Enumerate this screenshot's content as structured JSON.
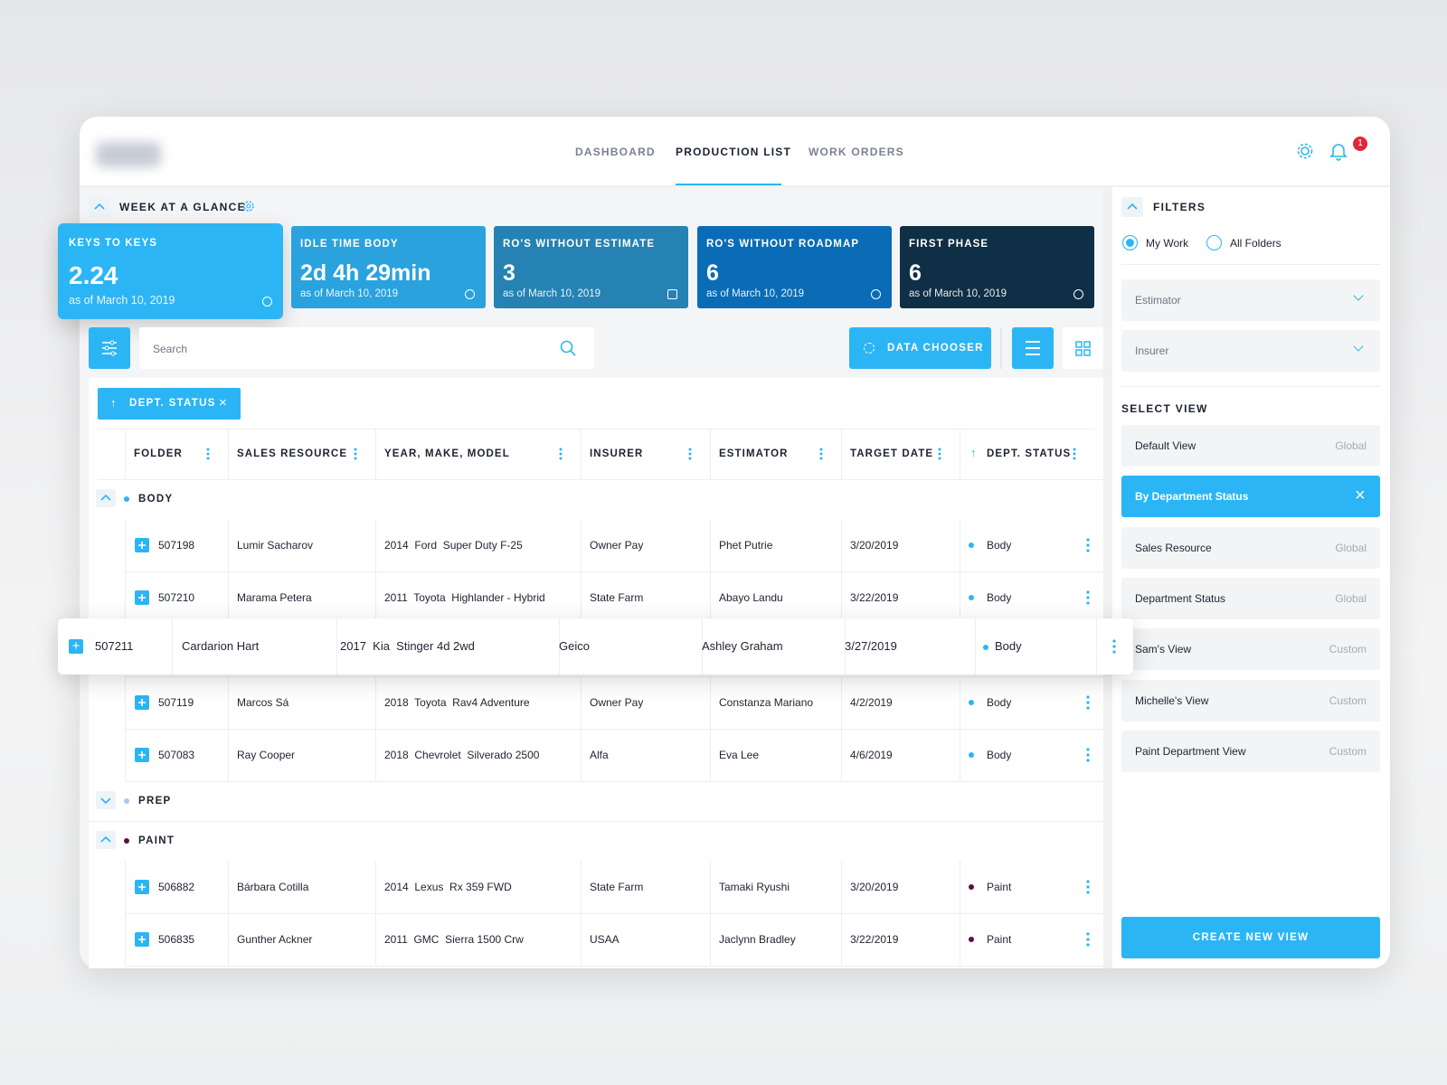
{
  "nav": {
    "items": [
      "DASHBOARD",
      "PRODUCTION LIST",
      "WORK ORDERS"
    ],
    "active": 1,
    "notification_count": "1"
  },
  "glance": {
    "title": "WEEK AT A GLANCE",
    "cards": [
      {
        "label": "KEYS TO KEYS",
        "value": "2.24",
        "date": "as of March 10, 2019",
        "color": "#2bb5f5"
      },
      {
        "label": "IDLE TIME BODY",
        "value": "2d 4h 29min",
        "date": "as of March 10, 2019",
        "color": "#2aa2de"
      },
      {
        "label": "RO'S WITHOUT ESTIMATE",
        "value": "3",
        "date": "as of March 10, 2019",
        "color": "#2582b3"
      },
      {
        "label": "RO'S WITHOUT ROADMAP",
        "value": "6",
        "date": "as of March 10, 2019",
        "color": "#0a6cb6"
      },
      {
        "label": "FIRST PHASE",
        "value": "6",
        "date": "as of March 10, 2019",
        "color": "#0e2f45"
      }
    ]
  },
  "toolbar": {
    "search_placeholder": "Search",
    "data_chooser": "DATA CHOOSER",
    "sort_chip": "DEPT. STATUS"
  },
  "table": {
    "columns": [
      "FOLDER",
      "SALES RESOURCE",
      "YEAR, MAKE, MODEL",
      "INSURER",
      "ESTIMATOR",
      "TARGET DATE",
      "DEPT. STATUS"
    ],
    "groups": [
      {
        "name": "BODY",
        "color": "#2bb5f5",
        "expanded": true,
        "rows": [
          {
            "cells": [
              "507198",
              "Lumir Sacharov",
              "2014  Ford  Super Duty F-25",
              "Owner Pay",
              "Phet Putrie",
              "3/20/2019",
              "Body"
            ]
          },
          {
            "cells": [
              "507210",
              "Marama Petera",
              "2011  Toyota  Highlander - Hybrid",
              "State Farm",
              "Abayo Landu",
              "3/22/2019",
              "Body"
            ]
          },
          {
            "cells": [
              "507211",
              "Cardarion Hart",
              "2017  Kia  Stinger 4d 2wd",
              "Geico",
              "Ashley Graham",
              "3/27/2019",
              "Body"
            ],
            "selected": true
          },
          {
            "cells": [
              "507119",
              "Marcos Sá",
              "2018  Toyota  Rav4 Adventure",
              "Owner Pay",
              "Constanza Mariano",
              "4/2/2019",
              "Body"
            ]
          },
          {
            "cells": [
              "507083",
              "Ray Cooper",
              "2018  Chevrolet  Silverado 2500",
              "Alfa",
              "Eva Lee",
              "4/6/2019",
              "Body"
            ]
          }
        ]
      },
      {
        "name": "PREP",
        "color": "#a9c9ea",
        "expanded": false,
        "rows": []
      },
      {
        "name": "PAINT",
        "color": "#5b0f3d",
        "expanded": true,
        "rows": [
          {
            "cells": [
              "506882",
              "Bárbara Cotilla",
              "2014  Lexus  Rx 359 FWD",
              "State Farm",
              "Tamaki Ryushi",
              "3/20/2019",
              "Paint"
            ]
          },
          {
            "cells": [
              "506835",
              "Gunther Ackner",
              "2011  GMC  Sierra 1500 Crw",
              "USAA",
              "Jaclynn Bradley",
              "3/22/2019",
              "Paint"
            ]
          }
        ]
      }
    ]
  },
  "filters": {
    "title": "FILTERS",
    "radios": [
      {
        "label": "My Work",
        "checked": true
      },
      {
        "label": "All Folders",
        "checked": false
      }
    ],
    "dropdowns": [
      "Estimator",
      "Insurer"
    ],
    "select_view_title": "SELECT VIEW",
    "views": [
      {
        "name": "Default View",
        "scope": "Global"
      },
      {
        "name": "By Department Status",
        "selected": true
      },
      {
        "name": "Sales Resource",
        "scope": "Global"
      },
      {
        "name": "Department Status",
        "scope": "Global"
      },
      {
        "name": "Sam's View",
        "scope": "Custom"
      },
      {
        "name": "Michelle's View",
        "scope": "Custom"
      },
      {
        "name": "Paint Department View",
        "scope": "Custom"
      }
    ],
    "create_button": "CREATE NEW VIEW"
  }
}
